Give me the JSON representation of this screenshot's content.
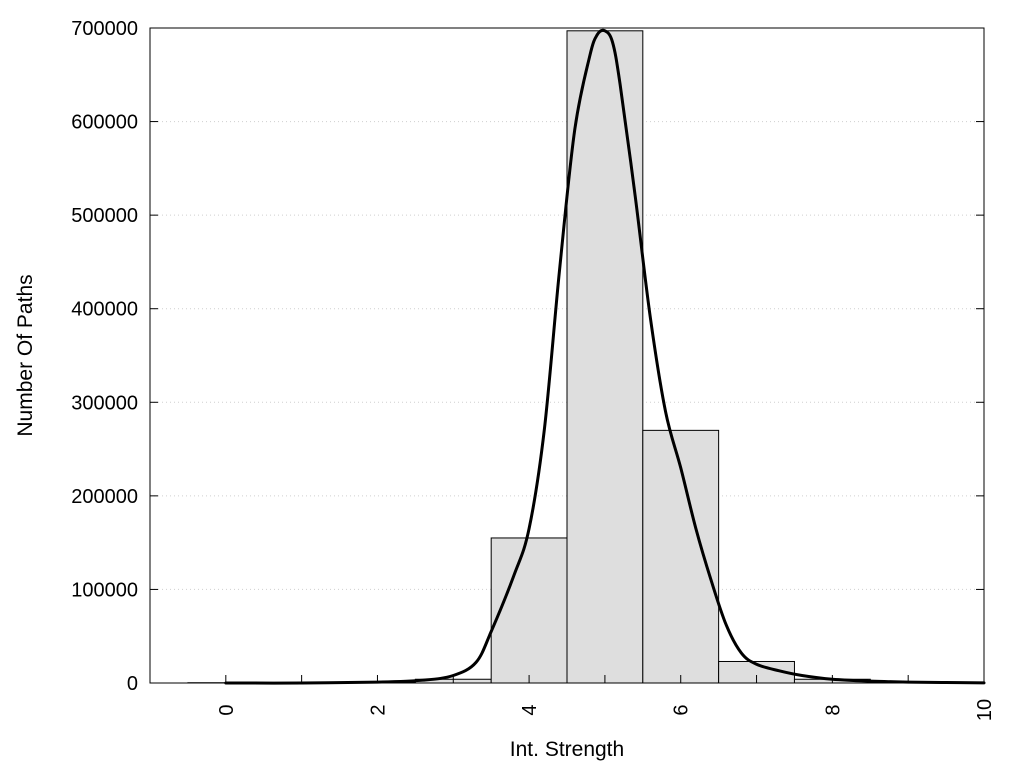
{
  "chart_data": {
    "type": "bar",
    "title": "",
    "xlabel": "Int. Strength",
    "ylabel": "Number Of Paths",
    "xlim": [
      -1,
      10
    ],
    "ylim": [
      0,
      700000
    ],
    "grid": "horizontal-dotted",
    "x_ticks": [
      0,
      2,
      4,
      6,
      8,
      10
    ],
    "x_tick_labels": [
      "0",
      "2",
      "4",
      "6",
      "8",
      "10"
    ],
    "y_ticks": [
      0,
      100000,
      200000,
      300000,
      400000,
      500000,
      600000,
      700000
    ],
    "y_tick_labels": [
      "0",
      "100000",
      "200000",
      "300000",
      "400000",
      "500000",
      "600000",
      "700000"
    ],
    "bin_width": 1,
    "bins": [
      {
        "center": 0,
        "value": 300
      },
      {
        "center": 1,
        "value": 500
      },
      {
        "center": 2,
        "value": 1000
      },
      {
        "center": 3,
        "value": 4000
      },
      {
        "center": 4,
        "value": 155000
      },
      {
        "center": 5,
        "value": 697000
      },
      {
        "center": 6,
        "value": 270000
      },
      {
        "center": 7,
        "value": 23000
      },
      {
        "center": 8,
        "value": 4000
      },
      {
        "center": 9,
        "value": 1000
      }
    ],
    "bar_color": "#dedede",
    "bar_edge_color": "#000000",
    "curve": {
      "x": [
        0,
        1,
        2,
        2.6,
        3.0,
        3.3,
        3.5,
        3.8,
        4.0,
        4.2,
        4.4,
        4.6,
        4.8,
        4.9,
        5.0,
        5.1,
        5.2,
        5.4,
        5.6,
        5.8,
        6.0,
        6.2,
        6.4,
        6.6,
        6.8,
        7.0,
        7.3,
        7.6,
        8.0,
        8.5,
        9.0,
        9.5,
        10.0
      ],
      "y": [
        0,
        0,
        1000,
        3000,
        8000,
        22000,
        55000,
        115000,
        165000,
        270000,
        440000,
        590000,
        670000,
        693000,
        697000,
        685000,
        640000,
        520000,
        390000,
        290000,
        230000,
        165000,
        110000,
        62000,
        32000,
        20000,
        13000,
        8000,
        4000,
        2000,
        1000,
        500,
        200
      ],
      "color": "#000000"
    }
  }
}
